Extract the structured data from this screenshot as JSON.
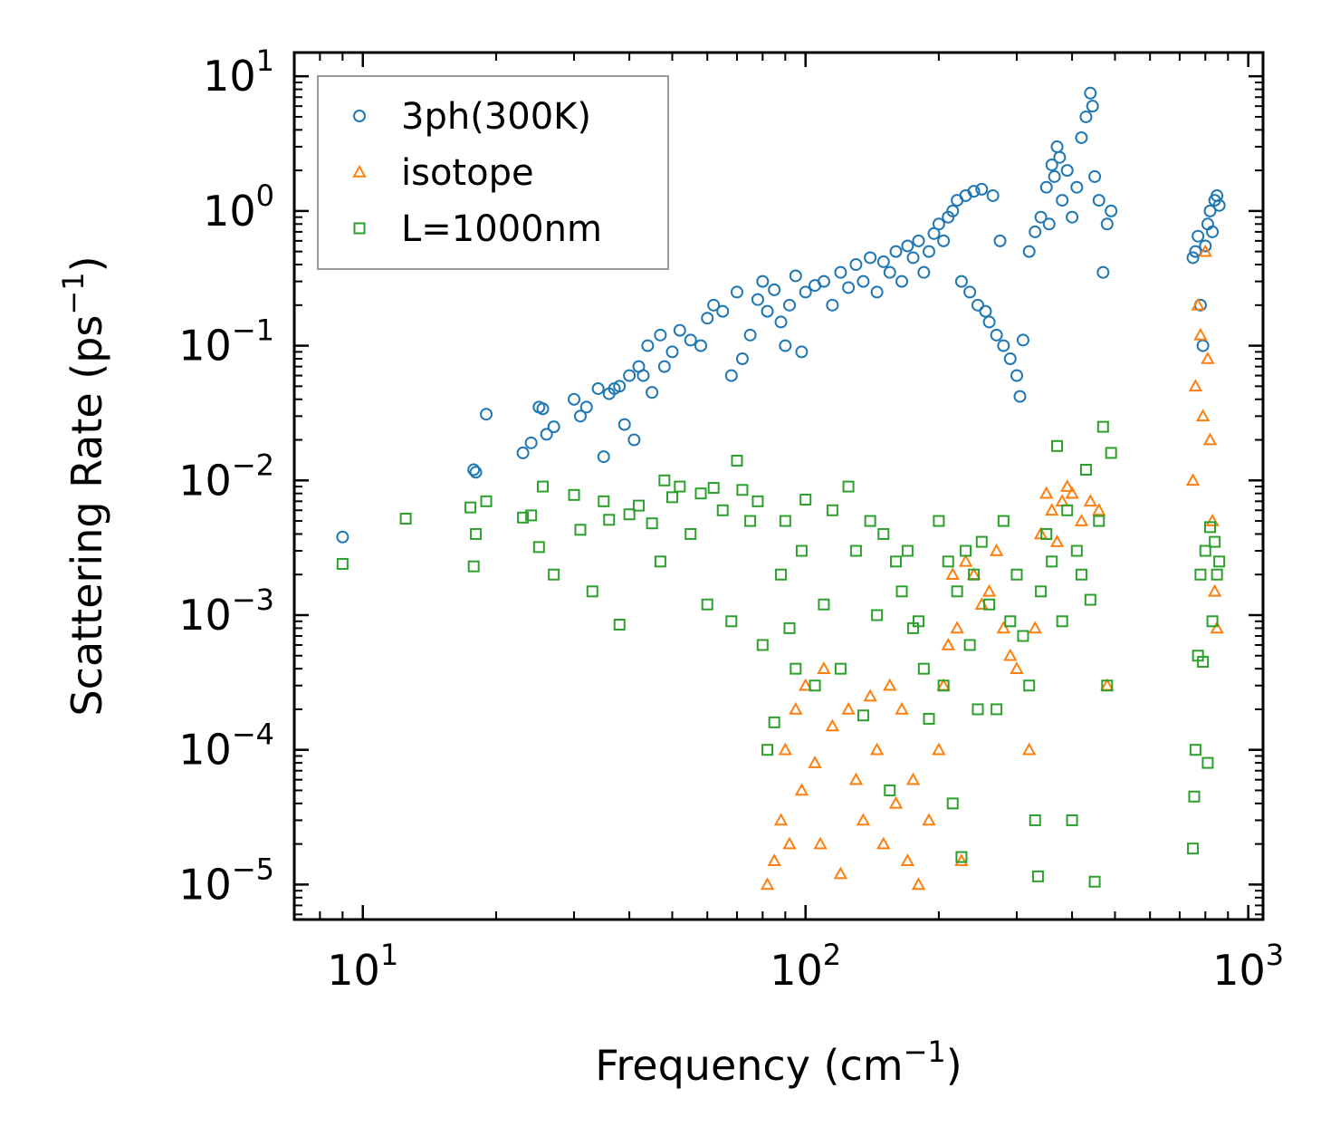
{
  "chart_data": {
    "type": "scatter",
    "xscale": "log",
    "yscale": "log",
    "xlim": [
      7,
      1080
    ],
    "ylim": [
      5.5e-06,
      15
    ],
    "xlabel": {
      "text": "Frequency (cm",
      "sup": "−1",
      "suffix": ")"
    },
    "ylabel": {
      "text": "Scattering Rate (ps",
      "sup": "−1",
      "suffix": ")"
    },
    "x_ticks": [
      {
        "base": "10",
        "exp": "1",
        "value": 10
      },
      {
        "base": "10",
        "exp": "2",
        "value": 100
      },
      {
        "base": "10",
        "exp": "3",
        "value": 1000
      }
    ],
    "y_ticks": [
      {
        "base": "10",
        "exp": "1",
        "value": 10
      },
      {
        "base": "10",
        "exp": "0",
        "value": 1
      },
      {
        "base": "10",
        "exp": "−1",
        "value": 0.1
      },
      {
        "base": "10",
        "exp": "−2",
        "value": 0.01
      },
      {
        "base": "10",
        "exp": "−3",
        "value": 0.001
      },
      {
        "base": "10",
        "exp": "−4",
        "value": 0.0001
      },
      {
        "base": "10",
        "exp": "−5",
        "value": 1e-05
      }
    ],
    "legend_position": "top-left",
    "series": [
      {
        "name": "3ph(300K)",
        "marker": "circle",
        "color": "#1f77b4",
        "points": [
          [
            9,
            0.0038
          ],
          [
            17.8,
            0.012
          ],
          [
            18,
            0.0115
          ],
          [
            19,
            0.031
          ],
          [
            23,
            0.016
          ],
          [
            24,
            0.019
          ],
          [
            25,
            0.035
          ],
          [
            25.5,
            0.034
          ],
          [
            26,
            0.022
          ],
          [
            27,
            0.025
          ],
          [
            30,
            0.04
          ],
          [
            31,
            0.03
          ],
          [
            32,
            0.035
          ],
          [
            34,
            0.048
          ],
          [
            35,
            0.015
          ],
          [
            36,
            0.044
          ],
          [
            37,
            0.048
          ],
          [
            38,
            0.05
          ],
          [
            39,
            0.026
          ],
          [
            40,
            0.06
          ],
          [
            41,
            0.02
          ],
          [
            42,
            0.07
          ],
          [
            43,
            0.06
          ],
          [
            44,
            0.1
          ],
          [
            45,
            0.045
          ],
          [
            47,
            0.12
          ],
          [
            48,
            0.07
          ],
          [
            50,
            0.09
          ],
          [
            52,
            0.13
          ],
          [
            55,
            0.11
          ],
          [
            58,
            0.1
          ],
          [
            60,
            0.16
          ],
          [
            62,
            0.2
          ],
          [
            65,
            0.18
          ],
          [
            68,
            0.06
          ],
          [
            70,
            0.25
          ],
          [
            72,
            0.08
          ],
          [
            75,
            0.12
          ],
          [
            78,
            0.22
          ],
          [
            80,
            0.3
          ],
          [
            82,
            0.18
          ],
          [
            85,
            0.26
          ],
          [
            88,
            0.15
          ],
          [
            90,
            0.1
          ],
          [
            92,
            0.2
          ],
          [
            95,
            0.33
          ],
          [
            98,
            0.09
          ],
          [
            100,
            0.25
          ],
          [
            105,
            0.28
          ],
          [
            110,
            0.3
          ],
          [
            115,
            0.2
          ],
          [
            120,
            0.35
          ],
          [
            125,
            0.27
          ],
          [
            130,
            0.4
          ],
          [
            135,
            0.3
          ],
          [
            140,
            0.45
          ],
          [
            145,
            0.25
          ],
          [
            150,
            0.42
          ],
          [
            155,
            0.35
          ],
          [
            160,
            0.5
          ],
          [
            165,
            0.3
          ],
          [
            170,
            0.55
          ],
          [
            175,
            0.45
          ],
          [
            180,
            0.6
          ],
          [
            185,
            0.35
          ],
          [
            190,
            0.5
          ],
          [
            195,
            0.68
          ],
          [
            200,
            0.8
          ],
          [
            205,
            0.6
          ],
          [
            210,
            0.9
          ],
          [
            215,
            1.0
          ],
          [
            220,
            1.2
          ],
          [
            225,
            0.3
          ],
          [
            230,
            1.3
          ],
          [
            235,
            0.25
          ],
          [
            240,
            1.4
          ],
          [
            245,
            0.2
          ],
          [
            250,
            1.45
          ],
          [
            255,
            0.18
          ],
          [
            260,
            0.15
          ],
          [
            265,
            1.3
          ],
          [
            270,
            0.12
          ],
          [
            275,
            0.6
          ],
          [
            280,
            0.1
          ],
          [
            290,
            0.08
          ],
          [
            300,
            0.06
          ],
          [
            305,
            0.042
          ],
          [
            310,
            0.11
          ],
          [
            320,
            0.5
          ],
          [
            330,
            0.7
          ],
          [
            340,
            0.9
          ],
          [
            350,
            1.5
          ],
          [
            355,
            0.8
          ],
          [
            360,
            2.2
          ],
          [
            365,
            1.8
          ],
          [
            370,
            3.0
          ],
          [
            375,
            2.5
          ],
          [
            380,
            1.2
          ],
          [
            390,
            2.0
          ],
          [
            400,
            0.9
          ],
          [
            410,
            1.5
          ],
          [
            420,
            3.5
          ],
          [
            430,
            5.0
          ],
          [
            440,
            7.5
          ],
          [
            445,
            6.0
          ],
          [
            450,
            1.8
          ],
          [
            460,
            1.2
          ],
          [
            470,
            0.35
          ],
          [
            480,
            0.8
          ],
          [
            490,
            1.0
          ],
          [
            750,
            0.45
          ],
          [
            760,
            0.5
          ],
          [
            770,
            0.65
          ],
          [
            780,
            0.2
          ],
          [
            790,
            0.1
          ],
          [
            800,
            0.55
          ],
          [
            810,
            0.8
          ],
          [
            820,
            1.0
          ],
          [
            830,
            0.7
          ],
          [
            840,
            1.2
          ],
          [
            850,
            1.3
          ],
          [
            860,
            1.1
          ]
        ]
      },
      {
        "name": "isotope",
        "marker": "triangle",
        "color": "#ff7f0e",
        "points": [
          [
            82,
            1e-05
          ],
          [
            85,
            1.5e-05
          ],
          [
            88,
            3e-05
          ],
          [
            90,
            0.0001
          ],
          [
            92,
            2e-05
          ],
          [
            95,
            0.0002
          ],
          [
            98,
            5e-05
          ],
          [
            100,
            0.0003
          ],
          [
            105,
            8e-05
          ],
          [
            108,
            2e-05
          ],
          [
            110,
            0.0004
          ],
          [
            115,
            0.00015
          ],
          [
            120,
            1.2e-05
          ],
          [
            125,
            0.0002
          ],
          [
            130,
            6e-05
          ],
          [
            135,
            3e-05
          ],
          [
            140,
            0.00025
          ],
          [
            145,
            0.0001
          ],
          [
            150,
            2e-05
          ],
          [
            155,
            0.0003
          ],
          [
            160,
            4e-05
          ],
          [
            165,
            0.0002
          ],
          [
            170,
            1.5e-05
          ],
          [
            175,
            6e-05
          ],
          [
            180,
            1e-05
          ],
          [
            190,
            3e-05
          ],
          [
            200,
            0.0001
          ],
          [
            205,
            0.0003
          ],
          [
            210,
            0.0006
          ],
          [
            215,
            0.002
          ],
          [
            220,
            0.0008
          ],
          [
            225,
            1.5e-05
          ],
          [
            230,
            0.0025
          ],
          [
            240,
            0.002
          ],
          [
            250,
            0.0012
          ],
          [
            260,
            0.0015
          ],
          [
            270,
            0.003
          ],
          [
            280,
            0.0008
          ],
          [
            290,
            0.0005
          ],
          [
            300,
            0.0004
          ],
          [
            320,
            0.0001
          ],
          [
            330,
            0.0008
          ],
          [
            340,
            0.004
          ],
          [
            350,
            0.008
          ],
          [
            360,
            0.006
          ],
          [
            370,
            0.0035
          ],
          [
            380,
            0.007
          ],
          [
            390,
            0.009
          ],
          [
            400,
            0.008
          ],
          [
            420,
            0.005
          ],
          [
            440,
            0.007
          ],
          [
            460,
            0.006
          ],
          [
            480,
            0.0003
          ],
          [
            750,
            0.01
          ],
          [
            760,
            0.05
          ],
          [
            770,
            0.2
          ],
          [
            780,
            0.12
          ],
          [
            790,
            0.03
          ],
          [
            800,
            0.5
          ],
          [
            810,
            0.08
          ],
          [
            820,
            0.02
          ],
          [
            830,
            0.005
          ],
          [
            840,
            0.0015
          ],
          [
            850,
            0.0008
          ]
        ]
      },
      {
        "name": "L=1000nm",
        "marker": "square",
        "color": "#2ca02c",
        "points": [
          [
            9,
            0.0024
          ],
          [
            12.5,
            0.0052
          ],
          [
            17.5,
            0.0063
          ],
          [
            17.8,
            0.0023
          ],
          [
            18,
            0.004
          ],
          [
            19,
            0.007
          ],
          [
            23,
            0.0053
          ],
          [
            24,
            0.0055
          ],
          [
            25,
            0.0032
          ],
          [
            25.5,
            0.009
          ],
          [
            27,
            0.002
          ],
          [
            30,
            0.0078
          ],
          [
            31,
            0.0043
          ],
          [
            33,
            0.0015
          ],
          [
            35,
            0.007
          ],
          [
            36,
            0.0051
          ],
          [
            38,
            0.00085
          ],
          [
            40,
            0.0056
          ],
          [
            42,
            0.0065
          ],
          [
            45,
            0.0048
          ],
          [
            47,
            0.0025
          ],
          [
            48,
            0.01
          ],
          [
            50,
            0.0075
          ],
          [
            52,
            0.009
          ],
          [
            55,
            0.004
          ],
          [
            58,
            0.008
          ],
          [
            60,
            0.0012
          ],
          [
            62,
            0.0088
          ],
          [
            65,
            0.006
          ],
          [
            68,
            0.0009
          ],
          [
            70,
            0.014
          ],
          [
            72,
            0.0085
          ],
          [
            75,
            0.005
          ],
          [
            78,
            0.007
          ],
          [
            80,
            0.0006
          ],
          [
            82,
            0.0001
          ],
          [
            85,
            0.00016
          ],
          [
            88,
            0.002
          ],
          [
            90,
            0.005
          ],
          [
            92,
            0.0008
          ],
          [
            95,
            0.0004
          ],
          [
            98,
            0.003
          ],
          [
            100,
            0.0072
          ],
          [
            105,
            0.0003
          ],
          [
            110,
            0.0012
          ],
          [
            115,
            0.006
          ],
          [
            120,
            0.0004
          ],
          [
            125,
            0.009
          ],
          [
            130,
            0.003
          ],
          [
            135,
            0.00018
          ],
          [
            140,
            0.005
          ],
          [
            145,
            0.001
          ],
          [
            150,
            0.004
          ],
          [
            155,
            5e-05
          ],
          [
            160,
            0.0025
          ],
          [
            165,
            0.0015
          ],
          [
            170,
            0.003
          ],
          [
            175,
            0.0008
          ],
          [
            180,
            0.0009
          ],
          [
            185,
            0.0004
          ],
          [
            190,
            0.00017
          ],
          [
            200,
            0.005
          ],
          [
            205,
            0.0003
          ],
          [
            210,
            0.0025
          ],
          [
            215,
            4e-05
          ],
          [
            220,
            0.0015
          ],
          [
            225,
            1.6e-05
          ],
          [
            230,
            0.003
          ],
          [
            235,
            0.0006
          ],
          [
            240,
            0.002
          ],
          [
            245,
            0.0002
          ],
          [
            250,
            0.0035
          ],
          [
            260,
            0.0012
          ],
          [
            270,
            0.0002
          ],
          [
            280,
            0.005
          ],
          [
            290,
            0.0009
          ],
          [
            300,
            0.002
          ],
          [
            310,
            0.0007
          ],
          [
            320,
            0.0003
          ],
          [
            330,
            3e-05
          ],
          [
            335,
            1.15e-05
          ],
          [
            340,
            0.0015
          ],
          [
            350,
            0.004
          ],
          [
            360,
            0.0025
          ],
          [
            370,
            0.018
          ],
          [
            380,
            0.0009
          ],
          [
            390,
            0.006
          ],
          [
            400,
            3e-05
          ],
          [
            410,
            0.003
          ],
          [
            420,
            0.002
          ],
          [
            430,
            0.012
          ],
          [
            440,
            0.0013
          ],
          [
            450,
            1.05e-05
          ],
          [
            460,
            0.005
          ],
          [
            470,
            0.025
          ],
          [
            480,
            0.0003
          ],
          [
            490,
            0.016
          ],
          [
            750,
            1.85e-05
          ],
          [
            755,
            4.5e-05
          ],
          [
            760,
            0.0001
          ],
          [
            770,
            0.0005
          ],
          [
            780,
            0.002
          ],
          [
            790,
            0.00045
          ],
          [
            800,
            0.003
          ],
          [
            810,
            8e-05
          ],
          [
            820,
            0.0045
          ],
          [
            830,
            0.0009
          ],
          [
            840,
            0.0035
          ],
          [
            850,
            0.002
          ],
          [
            860,
            0.0025
          ]
        ]
      }
    ]
  }
}
